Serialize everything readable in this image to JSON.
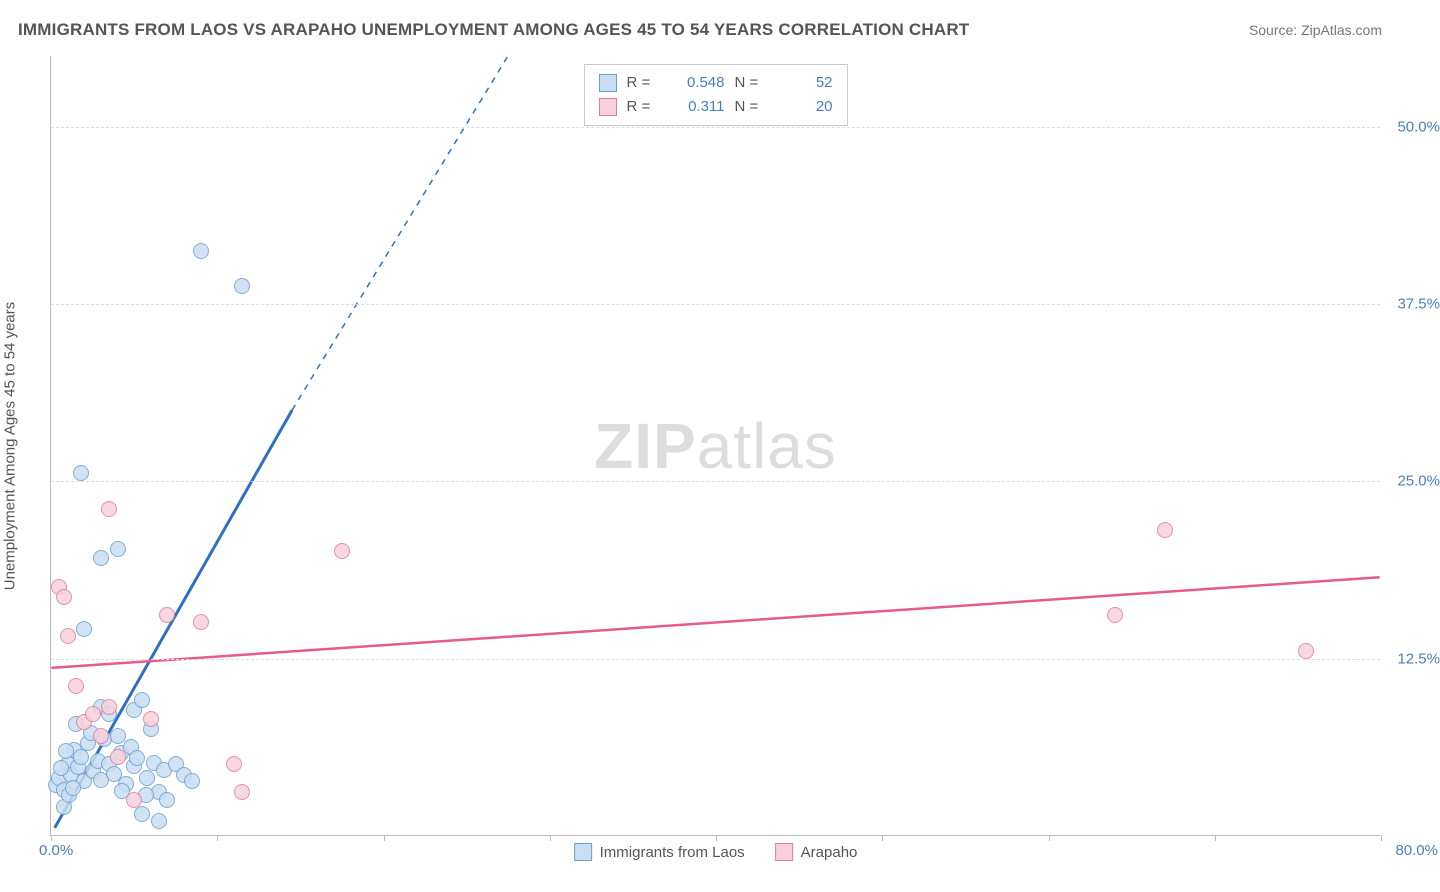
{
  "title": "IMMIGRANTS FROM LAOS VS ARAPAHO UNEMPLOYMENT AMONG AGES 45 TO 54 YEARS CORRELATION CHART",
  "source": "Source: ZipAtlas.com",
  "y_axis_title": "Unemployment Among Ages 45 to 54 years",
  "watermark_bold": "ZIP",
  "watermark_rest": "atlas",
  "chart": {
    "type": "scatter",
    "xlim": [
      0,
      80
    ],
    "ylim": [
      0,
      55
    ],
    "x_origin_label": "0.0%",
    "x_max_label": "80.0%",
    "y_ticks": [
      12.5,
      25.0,
      37.5,
      50.0
    ],
    "y_tick_labels": [
      "12.5%",
      "25.0%",
      "37.5%",
      "50.0%"
    ],
    "x_ticks": [
      0,
      10,
      20,
      30,
      40,
      50,
      60,
      70,
      80
    ],
    "background_color": "#ffffff",
    "grid_color": "#dddddd",
    "axis_color": "#bbbbbb",
    "tick_label_color": "#4a7ebb",
    "marker_radius": 8,
    "marker_stroke_width": 1.5,
    "series": [
      {
        "key": "laos",
        "label": "Immigrants from Laos",
        "stat_label_r": "R =",
        "stat_r": "0.548",
        "stat_label_n": "N =",
        "stat_n": "52",
        "marker_fill": "#c9def2",
        "marker_stroke": "#6a9fd4",
        "swatch_fill": "#c9def2",
        "swatch_border": "#6a9fd4",
        "trend_color": "#2f6fc3",
        "trend_width_solid": 3,
        "trend_width_dash": 1.5,
        "trend_solid": {
          "x1": 0.2,
          "y1": 0.5,
          "x2": 14.5,
          "y2": 30.0
        },
        "trend_dash": {
          "x1": 14.5,
          "y1": 30.0,
          "x2": 27.5,
          "y2": 55.0
        },
        "points": [
          [
            0.3,
            3.5
          ],
          [
            0.5,
            4.0
          ],
          [
            0.8,
            3.2
          ],
          [
            1.0,
            5.0
          ],
          [
            1.2,
            4.2
          ],
          [
            1.4,
            6.0
          ],
          [
            1.6,
            4.8
          ],
          [
            1.8,
            5.5
          ],
          [
            2.0,
            3.8
          ],
          [
            2.2,
            6.5
          ],
          [
            2.5,
            4.5
          ],
          [
            2.8,
            5.2
          ],
          [
            3.0,
            3.9
          ],
          [
            3.2,
            6.8
          ],
          [
            3.5,
            5.0
          ],
          [
            3.8,
            4.3
          ],
          [
            4.0,
            7.0
          ],
          [
            4.2,
            5.8
          ],
          [
            4.5,
            3.6
          ],
          [
            4.8,
            6.2
          ],
          [
            5.0,
            4.9
          ],
          [
            5.2,
            5.4
          ],
          [
            5.5,
            1.5
          ],
          [
            5.8,
            4.0
          ],
          [
            6.0,
            7.5
          ],
          [
            6.2,
            5.1
          ],
          [
            6.5,
            3.0
          ],
          [
            6.8,
            4.6
          ],
          [
            6.5,
            1.0
          ],
          [
            7.5,
            5.0
          ],
          [
            8.0,
            4.2
          ],
          [
            8.5,
            3.8
          ],
          [
            2.0,
            14.5
          ],
          [
            3.0,
            9.0
          ],
          [
            3.5,
            8.5
          ],
          [
            5.0,
            8.8
          ],
          [
            5.5,
            9.5
          ],
          [
            1.5,
            7.8
          ],
          [
            3.0,
            19.5
          ],
          [
            4.0,
            20.2
          ],
          [
            1.8,
            25.5
          ],
          [
            9.0,
            41.2
          ],
          [
            11.5,
            38.7
          ],
          [
            7.0,
            2.5
          ],
          [
            0.8,
            2.0
          ],
          [
            1.1,
            2.8
          ],
          [
            1.3,
            3.3
          ],
          [
            0.6,
            4.7
          ],
          [
            0.9,
            5.9
          ],
          [
            2.4,
            7.2
          ],
          [
            4.3,
            3.1
          ],
          [
            5.7,
            2.8
          ]
        ]
      },
      {
        "key": "arapaho",
        "label": "Arapaho",
        "stat_label_r": "R =",
        "stat_r": "0.311",
        "stat_label_n": "N =",
        "stat_n": "20",
        "marker_fill": "#f6d1db",
        "marker_stroke": "#e37d9c",
        "swatch_fill": "#f6d1db",
        "swatch_border": "#e37d9c",
        "trend_color": "#e75a8d",
        "trend_width_solid": 2.5,
        "trend_solid": {
          "x1": 0.0,
          "y1": 11.8,
          "x2": 80.0,
          "y2": 18.2
        },
        "points": [
          [
            0.5,
            17.5
          ],
          [
            0.8,
            16.8
          ],
          [
            1.0,
            14.0
          ],
          [
            1.5,
            10.5
          ],
          [
            2.0,
            8.0
          ],
          [
            2.5,
            8.5
          ],
          [
            3.0,
            7.0
          ],
          [
            3.5,
            9.0
          ],
          [
            3.5,
            23.0
          ],
          [
            4.0,
            5.5
          ],
          [
            5.0,
            2.5
          ],
          [
            6.0,
            8.2
          ],
          [
            7.0,
            15.5
          ],
          [
            9.0,
            15.0
          ],
          [
            11.0,
            5.0
          ],
          [
            11.5,
            3.0
          ],
          [
            17.5,
            20.0
          ],
          [
            64.0,
            15.5
          ],
          [
            67.0,
            21.5
          ],
          [
            75.5,
            13.0
          ]
        ]
      }
    ]
  }
}
